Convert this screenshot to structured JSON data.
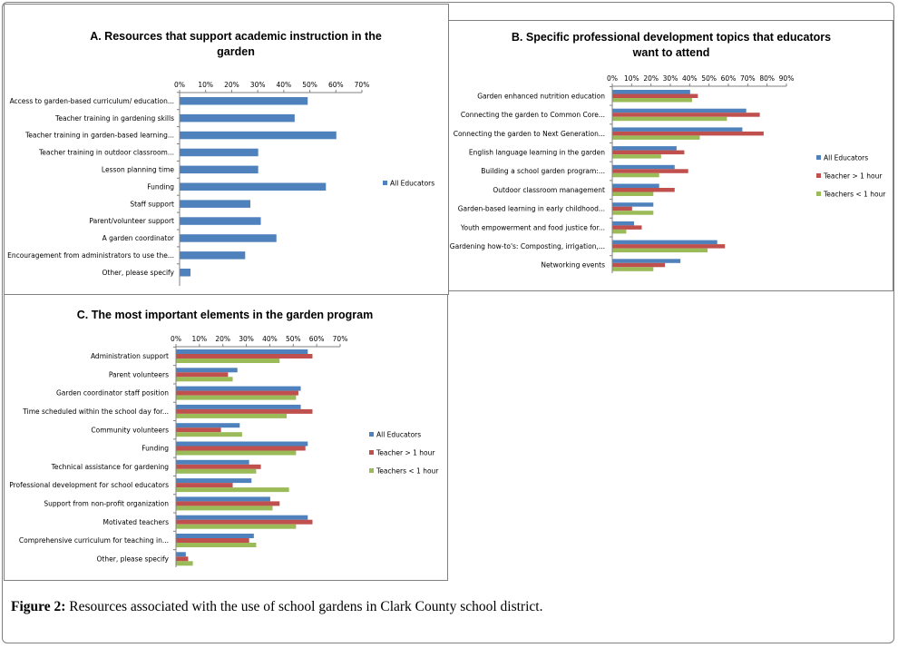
{
  "caption": {
    "label": "Figure 2:",
    "text": " Resources associated with the use of school gardens in Clark County school district."
  },
  "colors": {
    "all": "#4f81bd",
    "gt1": "#c0504d",
    "lt1": "#9bbb59",
    "axis": "#808080"
  },
  "chart_data": [
    {
      "id": "A",
      "type": "bar",
      "orientation": "horizontal",
      "title": [
        "A. Resources that support academic instruction in the",
        "garden"
      ],
      "xlim": [
        0,
        70
      ],
      "tick_labels": [
        "0%",
        "10%",
        "20%",
        "30%",
        "40%",
        "50%",
        "60%",
        "70%"
      ],
      "categories": [
        "Access to garden-based curriculum/ education...",
        "Teacher training in gardening skills",
        "Teacher training in garden-based learning...",
        "Teacher training in outdoor classroom...",
        "Lesson planning time",
        "Funding",
        "Staff support",
        "Parent/volunteer support",
        "A garden coordinator",
        "Encouragement from administrators to use the...",
        "Other, please specify"
      ],
      "series": [
        {
          "name": "All Educators",
          "color": "#4f81bd",
          "values": [
            49,
            44,
            60,
            30,
            30,
            56,
            27,
            31,
            37,
            25,
            4
          ]
        }
      ],
      "legend_position": "right"
    },
    {
      "id": "B",
      "type": "bar",
      "orientation": "horizontal",
      "title": [
        "B. Specific professional development topics that educators",
        "want to attend"
      ],
      "xlim": [
        0,
        90
      ],
      "tick_labels": [
        "0%",
        "10%",
        "20%",
        "30%",
        "40%",
        "50%",
        "60%",
        "70%",
        "80%",
        "90%"
      ],
      "categories": [
        "Garden enhanced nutrition education",
        "Connecting the garden to Common Core...",
        "Connecting the garden to Next Generation...",
        "English language learning in the garden",
        "Building a school garden program:...",
        "Outdoor classroom management",
        "Garden-based learning in early childhood...",
        "Youth empowerment and food justice for...",
        "Gardening how-to's: Composting, irrigation,...",
        "Networking events"
      ],
      "series": [
        {
          "name": "All Educators",
          "color": "#4f81bd",
          "values": [
            40,
            69,
            67,
            33,
            32,
            24,
            21,
            11,
            54,
            35
          ]
        },
        {
          "name": "Teacher > 1 hour",
          "color": "#c0504d",
          "values": [
            44,
            76,
            78,
            37,
            39,
            32,
            10,
            15,
            58,
            27
          ]
        },
        {
          "name": "Teachers < 1 hour",
          "color": "#9bbb59",
          "values": [
            41,
            59,
            45,
            25,
            24,
            21,
            21,
            7,
            49,
            21
          ]
        }
      ],
      "legend_position": "right"
    },
    {
      "id": "C",
      "type": "bar",
      "orientation": "horizontal",
      "title": [
        "C. The most important elements in the garden program"
      ],
      "xlim": [
        0,
        70
      ],
      "tick_labels": [
        "0%",
        "10%",
        "20%",
        "30%",
        "40%",
        "50%",
        "60%",
        "70%"
      ],
      "categories": [
        "Administration support",
        "Parent volunteers",
        "Garden coordinator staff position",
        "Time scheduled within the school day for...",
        "Community volunteers",
        "Funding",
        "Technical assistance for gardening",
        "Professional development for school educators",
        "Support from non-profit organization",
        "Motivated teachers",
        "Comprehensive curriculum for teaching in...",
        "Other, please specify"
      ],
      "series": [
        {
          "name": "All Educators",
          "color": "#4f81bd",
          "values": [
            56,
            26,
            53,
            53,
            27,
            56,
            31,
            32,
            40,
            56,
            33,
            4
          ]
        },
        {
          "name": "Teacher > 1 hour",
          "color": "#c0504d",
          "values": [
            58,
            22,
            52,
            58,
            19,
            55,
            36,
            24,
            44,
            58,
            31,
            5
          ]
        },
        {
          "name": "Teachers < 1 hour",
          "color": "#9bbb59",
          "values": [
            44,
            24,
            51,
            47,
            28,
            51,
            34,
            48,
            41,
            51,
            34,
            7
          ]
        }
      ],
      "legend_position": "right"
    }
  ]
}
